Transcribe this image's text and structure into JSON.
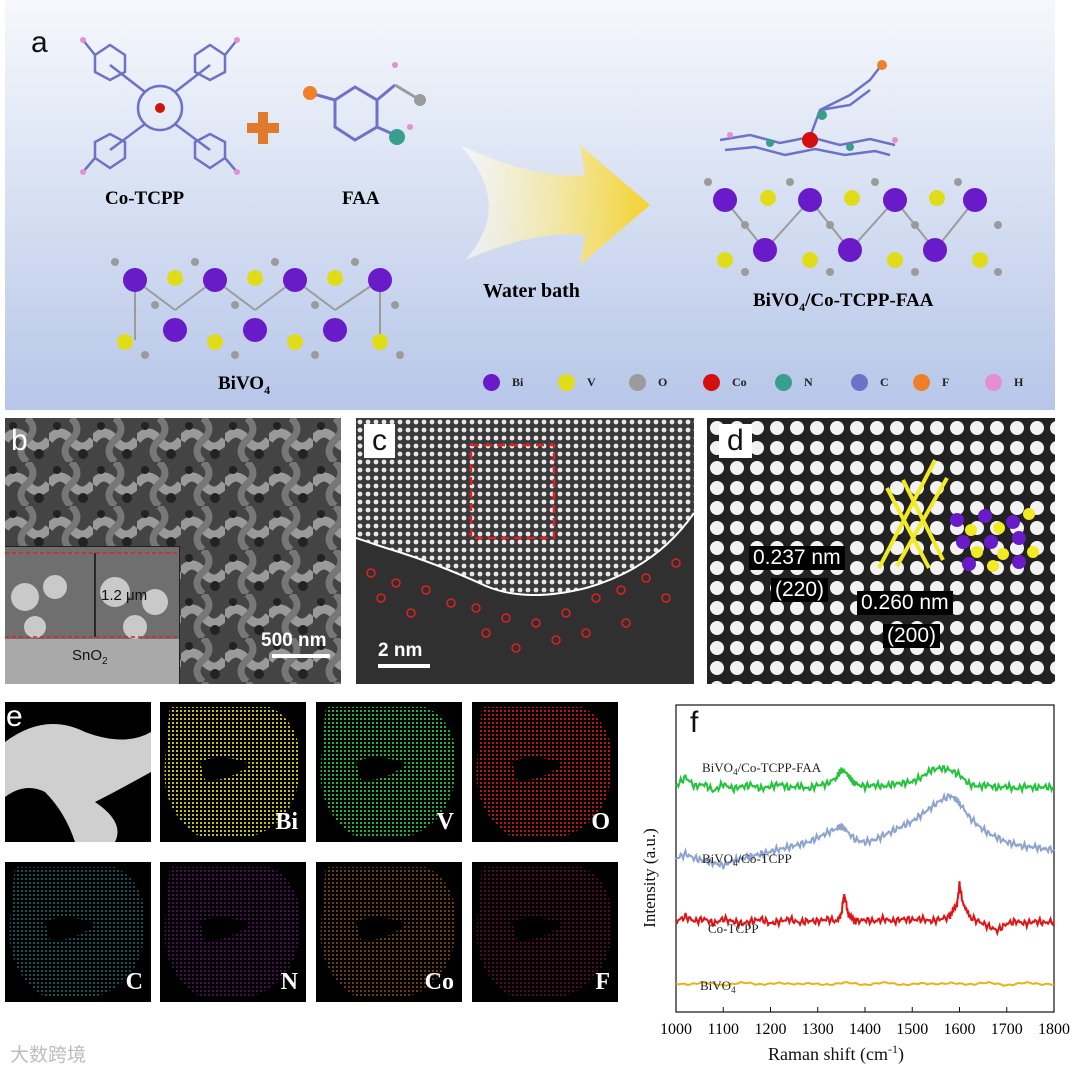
{
  "figure": {
    "panel_a": {
      "letter": "a",
      "cotcpp_label": "Co-TCPP",
      "faa_label": "FAA",
      "bivo4_label": "BiVO",
      "bivo4_sub": "4",
      "water_bath": "Water bath",
      "product_label_1": "BiVO",
      "product_sub": "4",
      "product_label_2": "/Co-TCPP-FAA",
      "legend": [
        {
          "label": "Bi",
          "color": "#6a1bc9"
        },
        {
          "label": "V",
          "color": "#e1dc19"
        },
        {
          "label": "O",
          "color": "#9b9b9b"
        },
        {
          "label": "Co",
          "color": "#d40f0f"
        },
        {
          "label": "N",
          "color": "#3a9e8c"
        },
        {
          "label": "C",
          "color": "#6d72c8"
        },
        {
          "label": "F",
          "color": "#f07f2a"
        },
        {
          "label": "H",
          "color": "#e58fd3"
        }
      ]
    },
    "panel_b": {
      "letter": "b",
      "thickness": "1.2 μm",
      "substrate": "SnO",
      "substrate_sub": "2",
      "scale": "500 nm"
    },
    "panel_c": {
      "letter": "c",
      "scale": "2 nm"
    },
    "panel_d": {
      "letter": "d",
      "spacing_1": "0.237 nm",
      "plane_1": "(220)",
      "spacing_2": "0.260 nm",
      "plane_2": "(200)"
    },
    "panel_e": {
      "letter": "e",
      "maps": [
        {
          "label": "",
          "color": "#ffffff"
        },
        {
          "label": "Bi",
          "color": "#e6e21c"
        },
        {
          "label": "V",
          "color": "#22d63a"
        },
        {
          "label": "O",
          "color": "#e01818"
        },
        {
          "label": "C",
          "color": "#22b7c4"
        },
        {
          "label": "N",
          "color": "#a51fb7"
        },
        {
          "label": "Co",
          "color": "#f08a1c"
        },
        {
          "label": "F",
          "color": "#b0185e"
        }
      ]
    },
    "panel_f": {
      "letter": "f",
      "chart_data": {
        "type": "line",
        "xlabel": "Raman shift (cm",
        "xlabel_sup": "-1",
        "xlabel_end": ")",
        "ylabel": "Intensity (a.u.)",
        "xlim": [
          1000,
          1800
        ],
        "xticks": [
          1000,
          1100,
          1200,
          1300,
          1400,
          1500,
          1600,
          1700,
          1800
        ],
        "series": [
          {
            "name": "BiVO4/Co-TCPP-FAA",
            "label_main": "BiVO",
            "label_sub": "4",
            "label_tail": "/Co-TCPP-FAA",
            "color": "#22c43a",
            "offset": 4.2,
            "x": [
              1000,
              1020,
              1040,
              1060,
              1080,
              1100,
              1120,
              1140,
              1160,
              1180,
              1200,
              1220,
              1240,
              1260,
              1280,
              1300,
              1320,
              1340,
              1350,
              1360,
              1370,
              1380,
              1400,
              1420,
              1440,
              1460,
              1480,
              1500,
              1520,
              1540,
              1560,
              1580,
              1600,
              1620,
              1640,
              1660,
              1680,
              1700,
              1720,
              1740,
              1760,
              1780,
              1800
            ],
            "y": [
              0.05,
              0.25,
              0.05,
              0.1,
              -0.05,
              0.1,
              0.0,
              0.05,
              0.08,
              0.0,
              0.05,
              0.1,
              0.02,
              0.06,
              0.0,
              0.08,
              0.1,
              0.25,
              0.4,
              0.35,
              0.2,
              0.1,
              0.05,
              0.08,
              0.05,
              0.1,
              0.12,
              0.15,
              0.25,
              0.4,
              0.45,
              0.4,
              0.3,
              0.1,
              0.05,
              0.08,
              0.02,
              0.05,
              0.0,
              0.05,
              0.02,
              0.04,
              0.02
            ]
          },
          {
            "name": "BiVO4/Co-TCPP",
            "label_main": "BiVO",
            "label_sub": "4",
            "label_tail": "/Co-TCPP",
            "color": "#8fa3cf",
            "offset": 2.6,
            "x": [
              1000,
              1020,
              1040,
              1060,
              1080,
              1100,
              1120,
              1140,
              1160,
              1180,
              1200,
              1220,
              1240,
              1260,
              1280,
              1300,
              1320,
              1340,
              1350,
              1360,
              1380,
              1400,
              1420,
              1440,
              1460,
              1480,
              1500,
              1520,
              1540,
              1560,
              1580,
              1590,
              1600,
              1620,
              1640,
              1660,
              1680,
              1700,
              1720,
              1740,
              1760,
              1780,
              1800
            ],
            "y": [
              0.1,
              0.2,
              0.1,
              0.05,
              0.0,
              -0.05,
              0.05,
              0.1,
              0.15,
              0.2,
              0.25,
              0.3,
              0.35,
              0.4,
              0.45,
              0.55,
              0.65,
              0.75,
              0.8,
              0.7,
              0.5,
              0.45,
              0.5,
              0.6,
              0.7,
              0.8,
              0.9,
              1.05,
              1.2,
              1.35,
              1.45,
              1.4,
              1.3,
              1.0,
              0.8,
              0.65,
              0.55,
              0.45,
              0.4,
              0.35,
              0.35,
              0.3,
              0.3
            ]
          },
          {
            "name": "Co-TCPP",
            "label_main": "Co-TCPP",
            "label_sub": "",
            "label_tail": "",
            "color": "#e01414",
            "offset": 1.3,
            "x": [
              1000,
              1020,
              1040,
              1060,
              1080,
              1100,
              1120,
              1140,
              1160,
              1180,
              1200,
              1220,
              1240,
              1260,
              1280,
              1300,
              1320,
              1340,
              1350,
              1355,
              1360,
              1365,
              1380,
              1400,
              1420,
              1440,
              1460,
              1480,
              1500,
              1520,
              1540,
              1560,
              1580,
              1595,
              1600,
              1605,
              1620,
              1640,
              1660,
              1680,
              1700,
              1720,
              1740,
              1760,
              1780,
              1800
            ],
            "y": [
              0.05,
              0.15,
              0.05,
              0.1,
              0.0,
              0.1,
              0.05,
              0.0,
              0.05,
              0.1,
              0.0,
              0.05,
              0.1,
              0.02,
              0.06,
              0.05,
              0.1,
              0.05,
              0.2,
              0.6,
              0.45,
              0.15,
              0.05,
              0.08,
              0.05,
              0.1,
              0.05,
              0.1,
              0.08,
              0.1,
              0.05,
              0.1,
              0.15,
              0.4,
              0.85,
              0.55,
              0.15,
              0.05,
              -0.05,
              -0.15,
              0.0,
              0.05,
              0.0,
              0.05,
              0.02,
              0.05
            ]
          },
          {
            "name": "BiVO4",
            "label_main": "BiVO",
            "label_sub": "4",
            "label_tail": "",
            "color": "#e8b21e",
            "offset": 0.0,
            "x": [
              1000,
              1050,
              1100,
              1150,
              1200,
              1250,
              1300,
              1350,
              1400,
              1450,
              1500,
              1550,
              1600,
              1650,
              1700,
              1750,
              1800
            ],
            "y": [
              0.0,
              0.02,
              -0.01,
              0.02,
              0.0,
              0.02,
              -0.01,
              0.02,
              0.0,
              0.02,
              -0.01,
              0.02,
              0.0,
              0.02,
              -0.01,
              0.02,
              0.0
            ]
          }
        ]
      }
    },
    "watermark": "大数跨境"
  }
}
